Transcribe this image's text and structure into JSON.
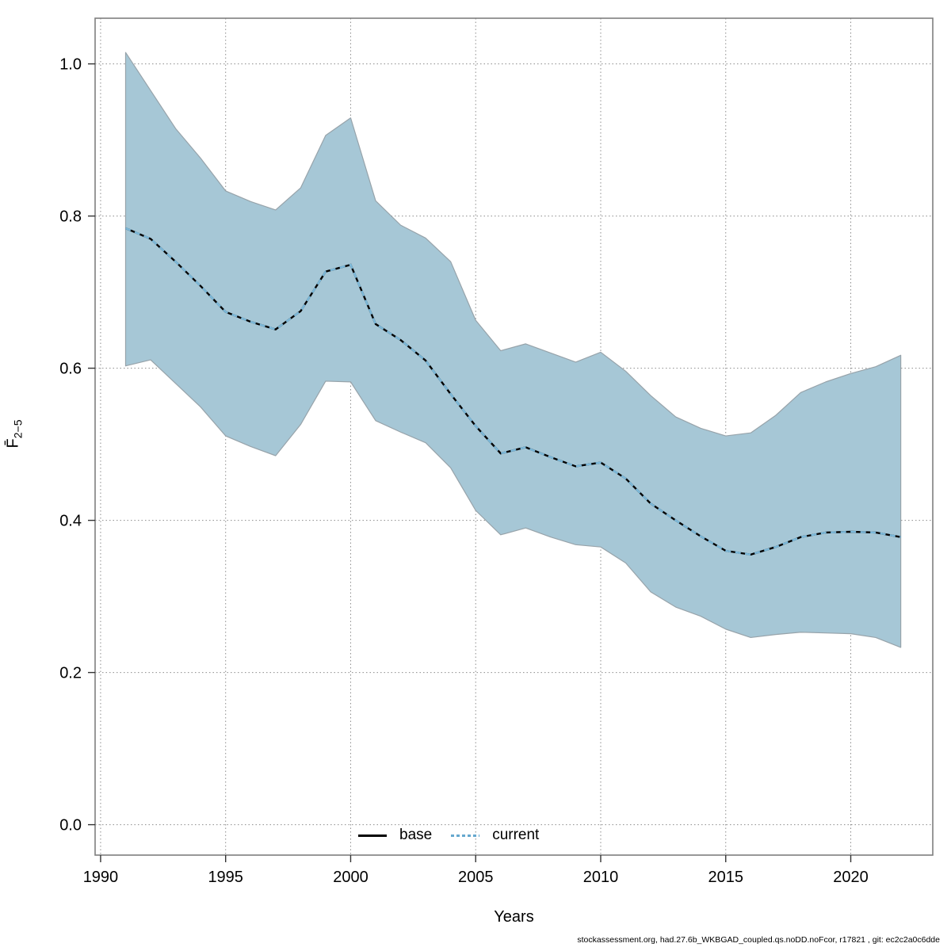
{
  "chart_data": {
    "type": "area",
    "title": "",
    "xlabel": "Years",
    "ylabel_main": "F̄",
    "ylabel_sub": "2−5",
    "xlim": [
      1989.78,
      2023.28
    ],
    "ylim": [
      -0.04,
      1.06
    ],
    "grid": true,
    "xticks": [
      {
        "v": 1990,
        "label": "1990"
      },
      {
        "v": 1995,
        "label": "1995"
      },
      {
        "v": 2000,
        "label": "2000"
      },
      {
        "v": 2005,
        "label": "2005"
      },
      {
        "v": 2010,
        "label": "2010"
      },
      {
        "v": 2015,
        "label": "2015"
      },
      {
        "v": 2020,
        "label": "2020"
      }
    ],
    "yticks": [
      {
        "v": 0.0,
        "label": "0.0"
      },
      {
        "v": 0.2,
        "label": "0.2"
      },
      {
        "v": 0.4,
        "label": "0.4"
      },
      {
        "v": 0.6,
        "label": "0.6"
      },
      {
        "v": 0.8,
        "label": "0.8"
      },
      {
        "v": 1.0,
        "label": "1.0"
      }
    ],
    "x": [
      1991,
      1992,
      1993,
      1994,
      1995,
      1996,
      1997,
      1998,
      1999,
      2000,
      2001,
      2002,
      2003,
      2004,
      2005,
      2006,
      2007,
      2008,
      2009,
      2010,
      2011,
      2012,
      2013,
      2014,
      2015,
      2016,
      2017,
      2018,
      2019,
      2020,
      2021,
      2022
    ],
    "series": [
      {
        "name": "base",
        "line": "solid",
        "color": "#000000",
        "values": [
          0.784,
          0.77,
          0.74,
          0.708,
          0.674,
          0.661,
          0.651,
          0.675,
          0.727,
          0.736,
          0.658,
          0.637,
          0.61,
          0.566,
          0.524,
          0.488,
          0.496,
          0.483,
          0.471,
          0.476,
          0.455,
          0.422,
          0.4,
          0.379,
          0.36,
          0.355,
          0.365,
          0.378,
          0.384,
          0.385,
          0.384,
          0.378
        ]
      },
      {
        "name": "current",
        "line": "dotted",
        "color": "#7cb9da",
        "values": [
          0.784,
          0.77,
          0.74,
          0.708,
          0.674,
          0.661,
          0.651,
          0.675,
          0.727,
          0.736,
          0.658,
          0.637,
          0.61,
          0.566,
          0.524,
          0.488,
          0.496,
          0.483,
          0.471,
          0.476,
          0.455,
          0.422,
          0.4,
          0.379,
          0.36,
          0.355,
          0.365,
          0.378,
          0.384,
          0.385,
          0.384,
          0.378
        ],
        "ci_lower": [
          0.603,
          0.611,
          0.58,
          0.549,
          0.511,
          0.497,
          0.485,
          0.526,
          0.583,
          0.582,
          0.531,
          0.516,
          0.502,
          0.469,
          0.413,
          0.381,
          0.39,
          0.378,
          0.368,
          0.365,
          0.344,
          0.306,
          0.286,
          0.274,
          0.257,
          0.246,
          0.25,
          0.253,
          0.252,
          0.251,
          0.246,
          0.233
        ],
        "ci_upper": [
          1.015,
          0.965,
          0.915,
          0.876,
          0.833,
          0.819,
          0.808,
          0.837,
          0.906,
          0.929,
          0.82,
          0.788,
          0.771,
          0.74,
          0.663,
          0.623,
          0.632,
          0.62,
          0.608,
          0.621,
          0.596,
          0.564,
          0.536,
          0.521,
          0.511,
          0.515,
          0.538,
          0.568,
          0.582,
          0.593,
          0.602,
          0.617
        ]
      }
    ],
    "legend": [
      {
        "label": "base"
      },
      {
        "label": "current"
      }
    ],
    "colors": {
      "band_fill": "#a6c7d6",
      "band_edge": "#97a3aa",
      "grid": "#8c8c8c",
      "box": "#7f7f7f",
      "tick": "#333333",
      "text": "#000000"
    }
  },
  "footer": {
    "citation": "stockassessment.org, had.27.6b_WKBGAD_coupled.qs.noDD.noFcor, r17821 , git: ec2c2a0c6dde"
  }
}
